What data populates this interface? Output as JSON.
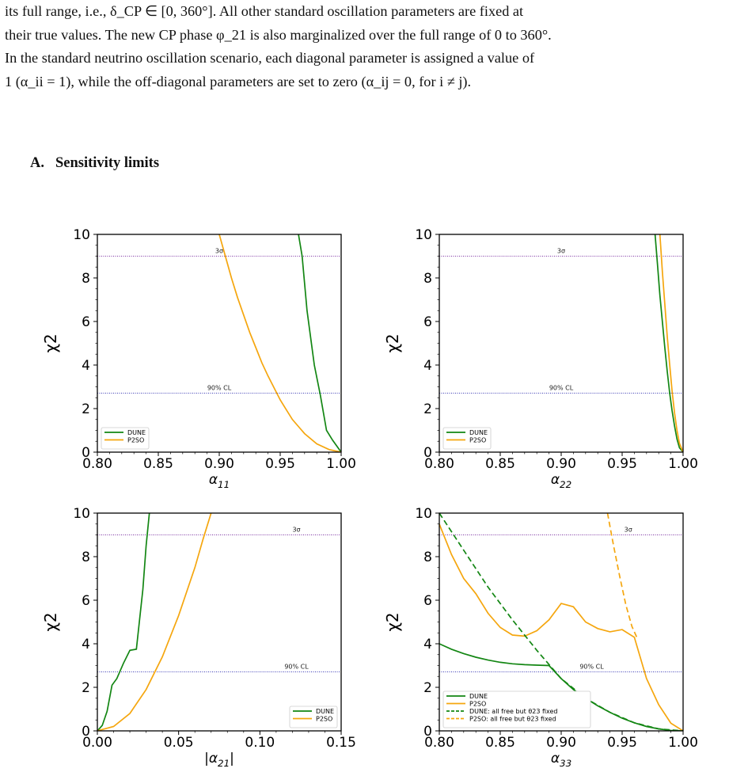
{
  "paper": {
    "lines": [
      "its full range, i.e., δ_CP ∈ [0, 360°]. All other standard oscillation parameters are fixed at",
      "their true values. The new CP phase φ_21 is also marginalized over the full range of 0 to 360°.",
      "In the standard neutrino oscillation scenario, each diagonal parameter is assigned a value of",
      "1 (α_ii = 1), while the off-diagonal parameters are set to zero (α_ij = 0, for i ≠ j)."
    ],
    "section_number": "A.",
    "section_title": "Sensitivity limits"
  },
  "chart_data": [
    {
      "type": "line",
      "xlabel": "α11",
      "ylabel": "χ2",
      "xlim": [
        0.8,
        1.0
      ],
      "ylim": [
        0,
        10
      ],
      "xticks": [
        "0.80",
        "0.85",
        "0.90",
        "0.95",
        "1.00"
      ],
      "yticks": [
        "0",
        "2",
        "4",
        "6",
        "8",
        "10"
      ],
      "ref_lines": [
        {
          "y": 9.0,
          "label": "3σ",
          "label_x": 0.9,
          "color": "#7a2fa0"
        },
        {
          "y": 2.71,
          "label": "90% CL",
          "label_x": 0.9,
          "color": "#3b3bb5"
        }
      ],
      "legend": "lower-left",
      "series": [
        {
          "name": "DUNE",
          "color": "#138613",
          "dash": "",
          "x": [
            0.965,
            0.968,
            0.972,
            0.978,
            0.983,
            0.988,
            0.993,
            1.0
          ],
          "y": [
            10.0,
            9.0,
            6.5,
            4.0,
            2.6,
            1.0,
            0.55,
            0.0
          ]
        },
        {
          "name": "P2SO",
          "color": "#f5a60e",
          "dash": "",
          "x": [
            0.9,
            0.905,
            0.91,
            0.915,
            0.92,
            0.925,
            0.93,
            0.935,
            0.94,
            0.945,
            0.95,
            0.955,
            0.96,
            0.97,
            0.98,
            0.99,
            1.0
          ],
          "y": [
            10.0,
            9.0,
            8.0,
            7.1,
            6.3,
            5.5,
            4.8,
            4.1,
            3.5,
            2.95,
            2.4,
            1.95,
            1.5,
            0.85,
            0.38,
            0.12,
            0.0
          ]
        }
      ]
    },
    {
      "type": "line",
      "xlabel": "α22",
      "ylabel": "χ2",
      "xlim": [
        0.8,
        1.0
      ],
      "ylim": [
        0,
        10
      ],
      "xticks": [
        "0.80",
        "0.85",
        "0.90",
        "0.95",
        "1.00"
      ],
      "yticks": [
        "0",
        "2",
        "4",
        "6",
        "8",
        "10"
      ],
      "ref_lines": [
        {
          "y": 9.0,
          "label": "3σ",
          "label_x": 0.9,
          "color": "#7a2fa0"
        },
        {
          "y": 2.71,
          "label": "90% CL",
          "label_x": 0.9,
          "color": "#3b3bb5"
        }
      ],
      "legend": "lower-left",
      "series": [
        {
          "name": "DUNE",
          "color": "#138613",
          "dash": "",
          "x": [
            0.977,
            0.979,
            0.981,
            0.983,
            0.985,
            0.987,
            0.989,
            0.991,
            0.993,
            0.995,
            0.997,
            1.0
          ],
          "y": [
            10.0,
            8.6,
            7.2,
            6.0,
            4.8,
            3.7,
            2.7,
            1.9,
            1.2,
            0.6,
            0.2,
            0.0
          ]
        },
        {
          "name": "P2SO",
          "color": "#f5a60e",
          "dash": "",
          "x": [
            0.981,
            0.983,
            0.985,
            0.987,
            0.989,
            0.991,
            0.993,
            0.995,
            0.997,
            1.0
          ],
          "y": [
            10.0,
            8.3,
            6.8,
            5.3,
            4.0,
            2.8,
            1.8,
            1.0,
            0.4,
            0.0
          ]
        }
      ]
    },
    {
      "type": "line",
      "xlabel": "|α21|",
      "ylabel": "χ2",
      "xlim": [
        0.0,
        0.15
      ],
      "ylim": [
        0,
        10
      ],
      "xticks": [
        "0.00",
        "0.05",
        "0.10",
        "0.15"
      ],
      "yticks": [
        "0",
        "2",
        "4",
        "6",
        "8",
        "10"
      ],
      "ref_lines": [
        {
          "y": 9.0,
          "label": "3σ",
          "label_x": 0.1225,
          "color": "#7a2fa0"
        },
        {
          "y": 2.71,
          "label": "90% CL",
          "label_x": 0.1225,
          "color": "#3b3bb5"
        }
      ],
      "legend": "lower-right",
      "series": [
        {
          "name": "DUNE",
          "color": "#138613",
          "dash": "",
          "x": [
            0.0,
            0.003,
            0.006,
            0.009,
            0.012,
            0.016,
            0.02,
            0.024,
            0.028,
            0.03,
            0.032
          ],
          "y": [
            0.0,
            0.25,
            0.9,
            2.1,
            2.4,
            3.1,
            3.7,
            3.75,
            6.5,
            8.5,
            10.0
          ]
        },
        {
          "name": "P2SO",
          "color": "#f5a60e",
          "dash": "",
          "x": [
            0.0,
            0.01,
            0.02,
            0.03,
            0.04,
            0.05,
            0.06,
            0.065,
            0.07
          ],
          "y": [
            0.0,
            0.2,
            0.8,
            1.9,
            3.4,
            5.3,
            7.5,
            8.8,
            10.0
          ]
        }
      ]
    },
    {
      "type": "line",
      "xlabel": "α33",
      "ylabel": "χ2",
      "xlim": [
        0.8,
        1.0
      ],
      "ylim": [
        0,
        10
      ],
      "xticks": [
        "0.80",
        "0.85",
        "0.90",
        "0.95",
        "1.00"
      ],
      "yticks": [
        "0",
        "2",
        "4",
        "6",
        "8",
        "10"
      ],
      "ref_lines": [
        {
          "y": 9.0,
          "label": "3σ",
          "label_x": 0.955,
          "color": "#7a2fa0"
        },
        {
          "y": 2.71,
          "label": "90% CL",
          "label_x": 0.925,
          "color": "#3b3bb5"
        }
      ],
      "legend": "lower-left",
      "series": [
        {
          "name": "DUNE",
          "color": "#138613",
          "dash": "",
          "x": [
            0.8,
            0.81,
            0.82,
            0.83,
            0.84,
            0.85,
            0.86,
            0.87,
            0.88,
            0.89,
            0.9,
            0.91,
            0.92,
            0.93,
            0.94,
            0.95,
            0.96,
            0.97,
            0.98,
            0.99,
            1.0
          ],
          "y": [
            4.0,
            3.75,
            3.55,
            3.38,
            3.25,
            3.15,
            3.08,
            3.04,
            3.02,
            3.0,
            2.4,
            1.9,
            1.5,
            1.15,
            0.85,
            0.58,
            0.37,
            0.2,
            0.09,
            0.02,
            0.0
          ]
        },
        {
          "name": "P2SO",
          "color": "#f5a60e",
          "dash": "",
          "x": [
            0.8,
            0.81,
            0.82,
            0.83,
            0.84,
            0.85,
            0.86,
            0.87,
            0.88,
            0.89,
            0.9,
            0.91,
            0.92,
            0.93,
            0.94,
            0.95,
            0.96,
            0.97,
            0.98,
            0.99,
            1.0
          ],
          "y": [
            9.5,
            8.1,
            7.0,
            6.3,
            5.4,
            4.75,
            4.4,
            4.35,
            4.6,
            5.1,
            5.85,
            5.7,
            5.0,
            4.7,
            4.55,
            4.65,
            4.3,
            2.4,
            1.2,
            0.35,
            0.0
          ]
        },
        {
          "name": "DUNE: all free but θ23 fixed",
          "color": "#138613",
          "dash": "7,4",
          "x": [
            0.8,
            0.82,
            0.84,
            0.86,
            0.88,
            0.9,
            0.92,
            0.94,
            0.96,
            0.98,
            1.0
          ],
          "y": [
            10.0,
            8.3,
            6.6,
            5.1,
            3.7,
            2.4,
            1.5,
            0.85,
            0.37,
            0.09,
            0.0
          ]
        },
        {
          "name": "P2SO: all free but θ23 fixed",
          "color": "#f5a60e",
          "dash": "7,4",
          "x": [
            0.938,
            0.943,
            0.948,
            0.953,
            0.958,
            0.962
          ],
          "y": [
            10.0,
            8.5,
            7.1,
            5.8,
            4.8,
            4.3
          ]
        }
      ]
    }
  ]
}
